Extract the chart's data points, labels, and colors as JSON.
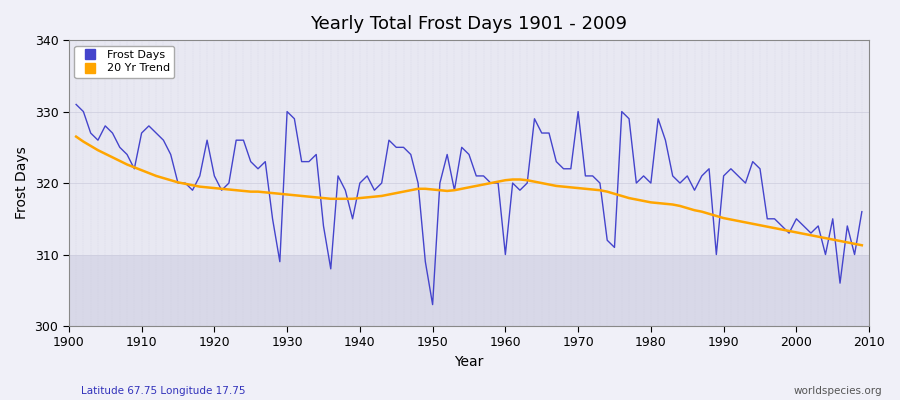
{
  "title": "Yearly Total Frost Days 1901 - 2009",
  "xlabel": "Year",
  "ylabel": "Frost Days",
  "footnote_left": "Latitude 67.75 Longitude 17.75",
  "footnote_right": "worldspecies.org",
  "ylim": [
    300,
    340
  ],
  "yticks": [
    300,
    310,
    320,
    330,
    340
  ],
  "xlim": [
    1901,
    2009
  ],
  "line_color": "#4444cc",
  "trend_color": "#FFA500",
  "bg_upper": "#e8e8f0",
  "bg_lower": "#d0d0e0",
  "years": [
    1901,
    1902,
    1903,
    1904,
    1905,
    1906,
    1907,
    1908,
    1909,
    1910,
    1911,
    1912,
    1913,
    1914,
    1915,
    1916,
    1917,
    1918,
    1919,
    1920,
    1921,
    1922,
    1923,
    1924,
    1925,
    1926,
    1927,
    1928,
    1929,
    1930,
    1931,
    1932,
    1933,
    1934,
    1935,
    1936,
    1937,
    1938,
    1939,
    1940,
    1941,
    1942,
    1943,
    1944,
    1945,
    1946,
    1947,
    1948,
    1949,
    1950,
    1951,
    1952,
    1953,
    1954,
    1955,
    1956,
    1957,
    1958,
    1959,
    1960,
    1961,
    1962,
    1963,
    1964,
    1965,
    1966,
    1967,
    1968,
    1969,
    1970,
    1971,
    1972,
    1973,
    1974,
    1975,
    1976,
    1977,
    1978,
    1979,
    1980,
    1981,
    1982,
    1983,
    1984,
    1985,
    1986,
    1987,
    1988,
    1989,
    1990,
    1991,
    1992,
    1993,
    1994,
    1995,
    1996,
    1997,
    1998,
    1999,
    2000,
    2001,
    2002,
    2003,
    2004,
    2005,
    2006,
    2007,
    2008,
    2009
  ],
  "frost_days": [
    331,
    330,
    327,
    326,
    328,
    327,
    325,
    324,
    322,
    327,
    328,
    327,
    326,
    324,
    320,
    320,
    319,
    321,
    326,
    321,
    319,
    320,
    326,
    326,
    323,
    322,
    323,
    315,
    309,
    330,
    329,
    323,
    323,
    324,
    314,
    308,
    321,
    319,
    315,
    320,
    321,
    319,
    320,
    326,
    325,
    325,
    324,
    320,
    309,
    303,
    320,
    324,
    319,
    325,
    324,
    321,
    321,
    320,
    320,
    310,
    320,
    319,
    320,
    329,
    327,
    327,
    323,
    322,
    322,
    330,
    321,
    321,
    320,
    312,
    311,
    330,
    329,
    320,
    321,
    320,
    329,
    326,
    321,
    320,
    321,
    319,
    321,
    322,
    310,
    321,
    322,
    321,
    320,
    323,
    322,
    315,
    315,
    314,
    313,
    315,
    314,
    313,
    314,
    310,
    315,
    306,
    314,
    310,
    316
  ],
  "trend_years": [
    1901,
    1902,
    1903,
    1904,
    1905,
    1906,
    1907,
    1908,
    1909,
    1910,
    1911,
    1912,
    1913,
    1914,
    1915,
    1916,
    1917,
    1918,
    1919,
    1920,
    1921,
    1922,
    1923,
    1924,
    1925,
    1926,
    1927,
    1928,
    1929,
    1930,
    1931,
    1932,
    1933,
    1934,
    1935,
    1936,
    1937,
    1938,
    1939,
    1940,
    1941,
    1942,
    1943,
    1944,
    1945,
    1946,
    1947,
    1948,
    1949,
    1950,
    1951,
    1952,
    1953,
    1954,
    1955,
    1956,
    1957,
    1958,
    1959,
    1960,
    1961,
    1962,
    1963,
    1964,
    1965,
    1966,
    1967,
    1968,
    1969,
    1970,
    1971,
    1972,
    1973,
    1974,
    1975,
    1976,
    1977,
    1978,
    1979,
    1980,
    1981,
    1982,
    1983,
    1984,
    1985,
    1986,
    1987,
    1988,
    1989,
    1990,
    1991,
    1992,
    1993,
    1994,
    1995,
    1996,
    1997,
    1998,
    1999,
    2000,
    2001,
    2002,
    2003,
    2004,
    2005,
    2006,
    2007,
    2008,
    2009
  ],
  "trend_vals": [
    326.5,
    325.8,
    325.2,
    324.6,
    324.1,
    323.6,
    323.1,
    322.6,
    322.2,
    321.8,
    321.4,
    321.0,
    320.7,
    320.4,
    320.1,
    319.9,
    319.7,
    319.5,
    319.4,
    319.3,
    319.2,
    319.1,
    319.0,
    318.9,
    318.8,
    318.8,
    318.7,
    318.6,
    318.5,
    318.4,
    318.3,
    318.2,
    318.1,
    318.0,
    317.9,
    317.8,
    317.8,
    317.8,
    317.8,
    317.9,
    318.0,
    318.1,
    318.2,
    318.4,
    318.6,
    318.8,
    319.0,
    319.2,
    319.2,
    319.1,
    319.0,
    318.9,
    319.0,
    319.2,
    319.4,
    319.6,
    319.8,
    320.0,
    320.2,
    320.4,
    320.5,
    320.5,
    320.4,
    320.2,
    320.0,
    319.8,
    319.6,
    319.5,
    319.4,
    319.3,
    319.2,
    319.1,
    319.0,
    318.8,
    318.5,
    318.2,
    317.9,
    317.7,
    317.5,
    317.3,
    317.2,
    317.1,
    317.0,
    316.8,
    316.5,
    316.2,
    316.0,
    315.7,
    315.4,
    315.1,
    314.9,
    314.7,
    314.5,
    314.3,
    314.1,
    313.9,
    313.7,
    313.5,
    313.3,
    313.1,
    312.9,
    312.7,
    312.5,
    312.3,
    312.1,
    311.9,
    311.7,
    311.5,
    311.3
  ]
}
